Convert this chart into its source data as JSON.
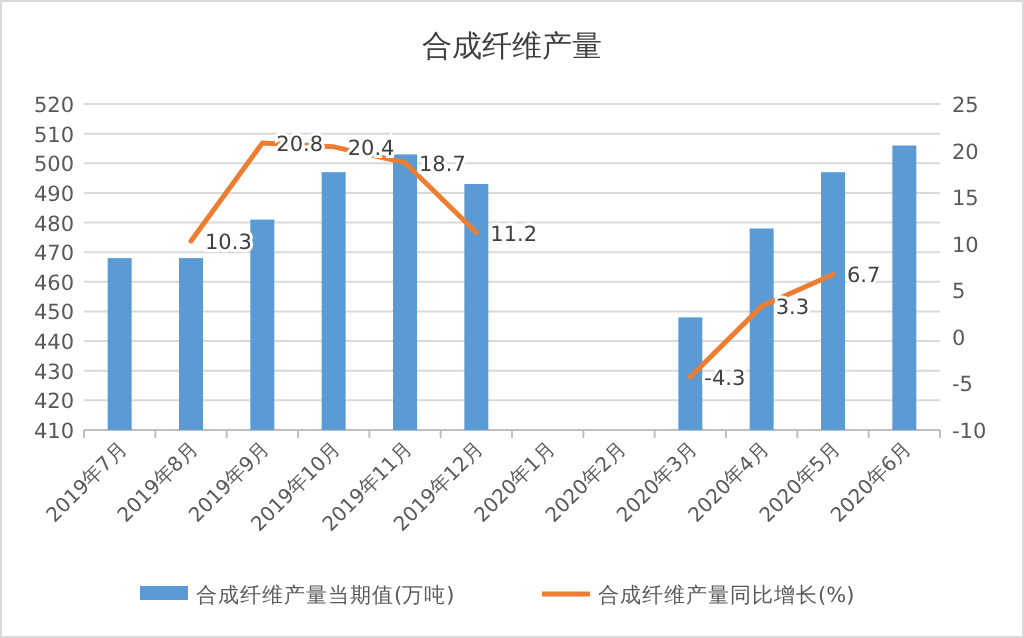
{
  "chart_data": {
    "type": "bar",
    "title": "合成纤维产量",
    "categories": [
      "2019年7月",
      "2019年8月",
      "2019年9月",
      "2019年10月",
      "2019年11月",
      "2019年12月",
      "2020年1月",
      "2020年2月",
      "2020年3月",
      "2020年4月",
      "2020年5月",
      "2020年6月"
    ],
    "series": [
      {
        "name": "合成纤维产量当期值(万吨)",
        "color": "#5b9bd5",
        "values": [
          468,
          468,
          481,
          497,
          503,
          493,
          null,
          null,
          448,
          478,
          497,
          506
        ]
      },
      {
        "name": "合成纤维产量同比增长(%)",
        "type": "line",
        "axis": "y2",
        "color": "#ed7d31",
        "values": [
          null,
          10.3,
          20.8,
          20.4,
          18.7,
          11.2,
          null,
          null,
          -4.3,
          3.3,
          6.7,
          null
        ],
        "value_labels": [
          null,
          "10.3",
          "20.8",
          "20.4",
          "18.7",
          "11.2",
          null,
          null,
          "-4.3",
          "3.3",
          "6.7",
          null
        ]
      }
    ],
    "ylim": [
      410,
      520
    ],
    "yticks": [
      410,
      420,
      430,
      440,
      450,
      460,
      470,
      480,
      490,
      500,
      510,
      520
    ],
    "y2lim": [
      -10,
      25
    ],
    "y2ticks": [
      -10,
      -5,
      0,
      5,
      10,
      15,
      20,
      25
    ],
    "grid": "y",
    "legend": "bottom"
  }
}
